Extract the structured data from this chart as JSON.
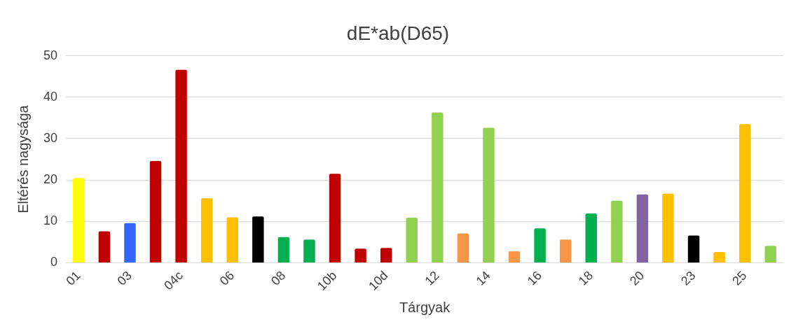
{
  "chart_data": {
    "type": "bar",
    "title": "dE*ab(D65)",
    "xlabel": "Tárgyak",
    "ylabel": "Eltérés nagysága",
    "categories": [
      "01",
      null,
      "03",
      null,
      "04c",
      null,
      "06",
      null,
      "08",
      null,
      "10b",
      null,
      "10d",
      null,
      "12",
      null,
      "14",
      null,
      "16",
      null,
      "18",
      null,
      "20",
      null,
      "23",
      null,
      "25",
      null
    ],
    "values": [
      20.5,
      7.6,
      9.6,
      24.6,
      46.6,
      15.6,
      11.0,
      11.2,
      6.2,
      5.6,
      21.5,
      3.4,
      3.6,
      10.9,
      36.3,
      7.1,
      32.6,
      2.8,
      8.3,
      5.6,
      11.9,
      15.0,
      16.5,
      16.7,
      6.6,
      2.6,
      33.5,
      4.1
    ],
    "colors": [
      "#ffff00",
      "#c00000",
      "#3366ff",
      "#c00000",
      "#c00000",
      "#ffc000",
      "#ffc000",
      "#000000",
      "#00b050",
      "#00b050",
      "#c00000",
      "#c00000",
      "#c00000",
      "#92d050",
      "#92d050",
      "#f79646",
      "#92d050",
      "#f79646",
      "#00b050",
      "#f79646",
      "#00b050",
      "#92d050",
      "#8064a2",
      "#ffc000",
      "#000000",
      "#ffc000",
      "#ffc000",
      "#92d050"
    ],
    "ylim": [
      0,
      50
    ],
    "yticks": [
      0,
      10,
      20,
      30,
      40,
      50
    ],
    "grid": "y",
    "legend": false
  }
}
